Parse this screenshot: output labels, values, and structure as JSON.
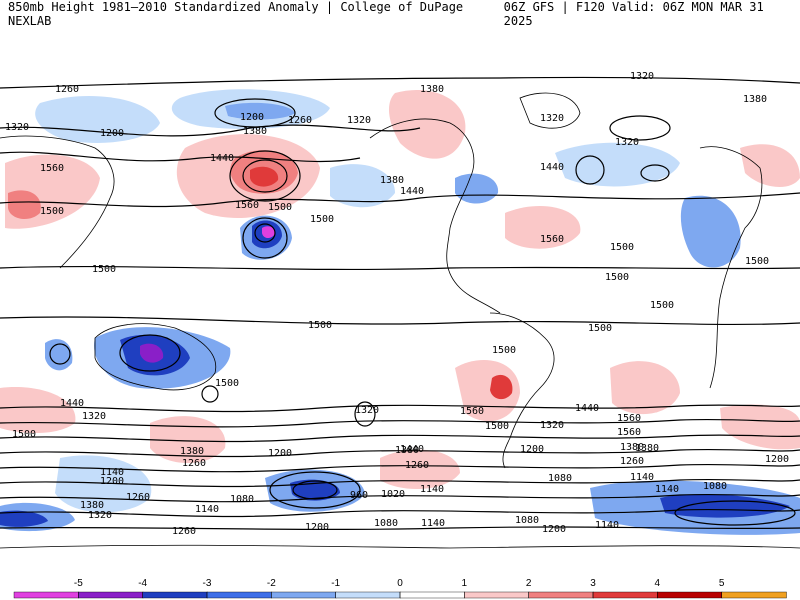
{
  "header": {
    "title_left": "850mb Height 1981–2010 Standardized Anomaly | College of DuPage NEXLAB",
    "title_right": "06Z GFS | F120 Valid: 06Z MON MAR 31 2025"
  },
  "legend": {
    "ticks": [
      "-5",
      "-4",
      "-3",
      "-2",
      "-1",
      "0",
      "1",
      "2",
      "3",
      "4",
      "5"
    ],
    "colors": [
      "#e040e0",
      "#8a1fc8",
      "#1f3fc0",
      "#3d6ee8",
      "#7ea8f0",
      "#c4ddfa",
      "#ffffff",
      "#fac8c8",
      "#f08080",
      "#e03a3a",
      "#b80000",
      "#f0a020"
    ]
  },
  "map": {
    "contour_labels": [
      {
        "text": "1260"
      },
      {
        "text": "1380"
      },
      {
        "text": "1200"
      },
      {
        "text": "1320"
      },
      {
        "text": "1200"
      },
      {
        "text": "1260"
      },
      {
        "text": "1380"
      },
      {
        "text": "1320"
      },
      {
        "text": "1320"
      },
      {
        "text": "1380"
      },
      {
        "text": "1320"
      },
      {
        "text": "1320"
      },
      {
        "text": "1560"
      },
      {
        "text": "1440"
      },
      {
        "text": "1380"
      },
      {
        "text": "1440"
      },
      {
        "text": "1440"
      },
      {
        "text": "1500"
      },
      {
        "text": "1560"
      },
      {
        "text": "1500"
      },
      {
        "text": "1500"
      },
      {
        "text": "1560"
      },
      {
        "text": "1500"
      },
      {
        "text": "1500"
      },
      {
        "text": "1500"
      },
      {
        "text": "1500"
      },
      {
        "text": "1500"
      },
      {
        "text": "1500"
      },
      {
        "text": "1500"
      },
      {
        "text": "1500"
      },
      {
        "text": "1440"
      },
      {
        "text": "1320"
      },
      {
        "text": "1500"
      },
      {
        "text": "1560"
      },
      {
        "text": "1500"
      },
      {
        "text": "1560"
      },
      {
        "text": "1440"
      },
      {
        "text": "1560"
      },
      {
        "text": "1320"
      },
      {
        "text": "1500"
      },
      {
        "text": "1380"
      },
      {
        "text": "1380"
      },
      {
        "text": "1260"
      },
      {
        "text": "1140"
      },
      {
        "text": "1200"
      },
      {
        "text": "1260"
      },
      {
        "text": "1380"
      },
      {
        "text": "1320"
      },
      {
        "text": "1200"
      },
      {
        "text": "1440"
      },
      {
        "text": "1380"
      },
      {
        "text": "1320"
      },
      {
        "text": "1200"
      },
      {
        "text": "1080"
      },
      {
        "text": "1140"
      },
      {
        "text": "960"
      },
      {
        "text": "1020"
      },
      {
        "text": "1140"
      },
      {
        "text": "1080"
      },
      {
        "text": "1260"
      },
      {
        "text": "1380"
      },
      {
        "text": "1260"
      },
      {
        "text": "1140"
      },
      {
        "text": "1080"
      },
      {
        "text": "1200"
      },
      {
        "text": "1200"
      },
      {
        "text": "1080"
      },
      {
        "text": "1140"
      },
      {
        "text": "1080"
      },
      {
        "text": "1140"
      },
      {
        "text": "1260"
      },
      {
        "text": "1200"
      },
      {
        "text": "1140"
      }
    ]
  }
}
